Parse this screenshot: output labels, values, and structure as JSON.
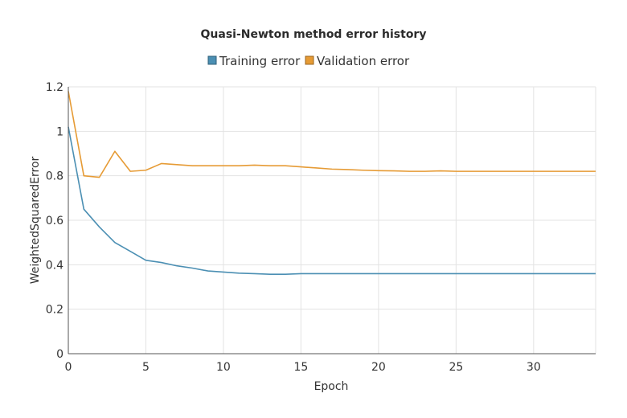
{
  "chart_data": {
    "type": "line",
    "title": "Quasi-Newton method error history",
    "xlabel": "Epoch",
    "ylabel": "WeightedSquaredError",
    "xlim": [
      0,
      34
    ],
    "ylim": [
      0,
      1.2
    ],
    "x_ticks": [
      0,
      5,
      10,
      15,
      20,
      25,
      30
    ],
    "y_ticks": [
      0,
      0.2,
      0.4,
      0.6,
      0.8,
      1,
      1.2
    ],
    "x_tick_labels": [
      "0",
      "5",
      "10",
      "15",
      "20",
      "25",
      "30"
    ],
    "y_tick_labels": [
      "0",
      "0.2",
      "0.4",
      "0.6",
      "0.8",
      "1",
      "1.2"
    ],
    "grid": true,
    "legend_position": "top-center",
    "x": [
      0,
      1,
      2,
      3,
      4,
      5,
      6,
      7,
      8,
      9,
      10,
      11,
      12,
      13,
      14,
      15,
      16,
      17,
      18,
      19,
      20,
      21,
      22,
      23,
      24,
      25,
      26,
      27,
      28,
      29,
      30,
      31,
      32,
      33,
      34
    ],
    "series": [
      {
        "name": "Training error",
        "color": "#4b8fb3",
        "values": [
          1.02,
          0.65,
          0.57,
          0.5,
          0.46,
          0.42,
          0.41,
          0.395,
          0.385,
          0.372,
          0.367,
          0.362,
          0.36,
          0.357,
          0.357,
          0.36,
          0.36,
          0.36,
          0.36,
          0.36,
          0.36,
          0.36,
          0.36,
          0.36,
          0.36,
          0.36,
          0.36,
          0.36,
          0.36,
          0.36,
          0.36,
          0.36,
          0.36,
          0.36,
          0.36
        ]
      },
      {
        "name": "Validation error",
        "color": "#e69b35",
        "values": [
          1.18,
          0.8,
          0.793,
          0.91,
          0.82,
          0.825,
          0.855,
          0.85,
          0.845,
          0.845,
          0.845,
          0.845,
          0.848,
          0.845,
          0.845,
          0.84,
          0.835,
          0.83,
          0.828,
          0.825,
          0.823,
          0.822,
          0.82,
          0.82,
          0.822,
          0.82,
          0.82,
          0.82,
          0.82,
          0.82,
          0.82,
          0.82,
          0.82,
          0.82,
          0.82
        ]
      }
    ]
  }
}
